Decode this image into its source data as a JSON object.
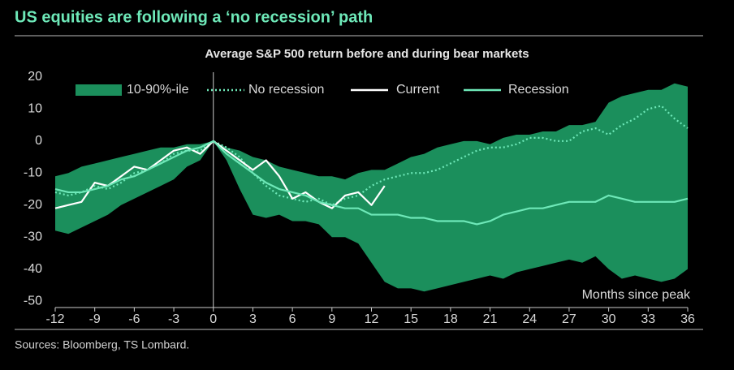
{
  "chart_data": {
    "type": "line",
    "title": "US equities are following a ‘no recession’ path",
    "subtitle": "Average S&P 500 return before and during bear markets",
    "xlabel": "Months since peak",
    "source": "Sources: Bloomberg, TS Lombard.",
    "x": [
      -12,
      -11,
      -10,
      -9,
      -8,
      -7,
      -6,
      -5,
      -4,
      -3,
      -2,
      -1,
      0,
      1,
      2,
      3,
      4,
      5,
      6,
      7,
      8,
      9,
      10,
      11,
      12,
      13,
      14,
      15,
      16,
      17,
      18,
      19,
      20,
      21,
      22,
      23,
      24,
      25,
      26,
      27,
      28,
      29,
      30,
      31,
      32,
      33,
      34,
      35,
      36
    ],
    "xlim": [
      -12,
      36
    ],
    "xticks": [
      -12,
      -9,
      -6,
      -3,
      0,
      3,
      6,
      9,
      12,
      15,
      18,
      21,
      24,
      27,
      30,
      33,
      36
    ],
    "ylim": [
      -52,
      21.5
    ],
    "yticks": [
      20,
      10,
      0,
      -10,
      -20,
      -30,
      -40,
      -50
    ],
    "band": {
      "name": "10-90%-ile",
      "color": "#1b8f5c",
      "upper": [
        -11,
        -10,
        -8,
        -7,
        -6,
        -5,
        -4,
        -3,
        -2,
        -2,
        -1,
        -1,
        0,
        -2,
        -3,
        -5,
        -6,
        -8,
        -9,
        -10,
        -11,
        -11,
        -12,
        -10,
        -9,
        -9,
        -7,
        -5,
        -4,
        -2,
        -1,
        0,
        0,
        -1,
        1,
        2,
        2,
        3,
        3,
        5,
        5,
        6,
        12,
        14,
        15,
        16,
        16,
        18,
        17
      ],
      "lower": [
        -28,
        -29,
        -27,
        -25,
        -23,
        -20,
        -18,
        -16,
        -14,
        -12,
        -8,
        -6,
        0,
        -6,
        -15,
        -23,
        -24,
        -23,
        -25,
        -25,
        -26,
        -30,
        -30,
        -32,
        -38,
        -44,
        -46,
        -46,
        -47,
        -46,
        -45,
        -44,
        -43,
        -42,
        -43,
        -41,
        -40,
        -39,
        -38,
        -37,
        -38,
        -36,
        -40,
        -43,
        -42,
        -43,
        -44,
        -43,
        -40
      ]
    },
    "series": [
      {
        "name": "No recession",
        "color": "#6ee8b8",
        "dash": true,
        "values": [
          -16,
          -17,
          -16,
          -14,
          -15,
          -13,
          -10,
          -9,
          -7,
          -4,
          -3,
          -3,
          0,
          -2,
          -5,
          -10,
          -14,
          -17,
          -18,
          -19,
          -18,
          -20,
          -18,
          -17,
          -14,
          -12,
          -11,
          -10,
          -10,
          -9,
          -7,
          -5,
          -3,
          -2,
          -2,
          -1,
          1,
          1,
          0,
          0,
          3,
          4,
          2,
          5,
          7,
          10,
          11,
          7,
          4
        ]
      },
      {
        "name": "Current",
        "color": "#ffffff",
        "dash": false,
        "values": [
          -21,
          -20,
          -19,
          -13,
          -14,
          -11,
          -8,
          -9,
          -6,
          -3,
          -2,
          -4,
          0,
          -3,
          -6,
          -9,
          -6,
          -11,
          -18,
          -16,
          -19,
          -21,
          -17,
          -16,
          -20,
          -14,
          null,
          null,
          null,
          null,
          null,
          null,
          null,
          null,
          null,
          null,
          null,
          null,
          null,
          null,
          null,
          null,
          null,
          null,
          null,
          null,
          null,
          null,
          null
        ]
      },
      {
        "name": "Recession",
        "color": "#6ee8b8",
        "dash": false,
        "values": [
          -15,
          -16,
          -16,
          -15,
          -14,
          -12,
          -11,
          -9,
          -7,
          -5,
          -3,
          -2,
          0,
          -4,
          -7,
          -10,
          -13,
          -15,
          -16,
          -17,
          -19,
          -20,
          -21,
          -21,
          -23,
          -23,
          -23,
          -24,
          -24,
          -25,
          -25,
          -25,
          -26,
          -25,
          -23,
          -22,
          -21,
          -21,
          -20,
          -19,
          -19,
          -19,
          -17,
          -18,
          -19,
          -19,
          -19,
          -19,
          -18
        ]
      }
    ]
  }
}
